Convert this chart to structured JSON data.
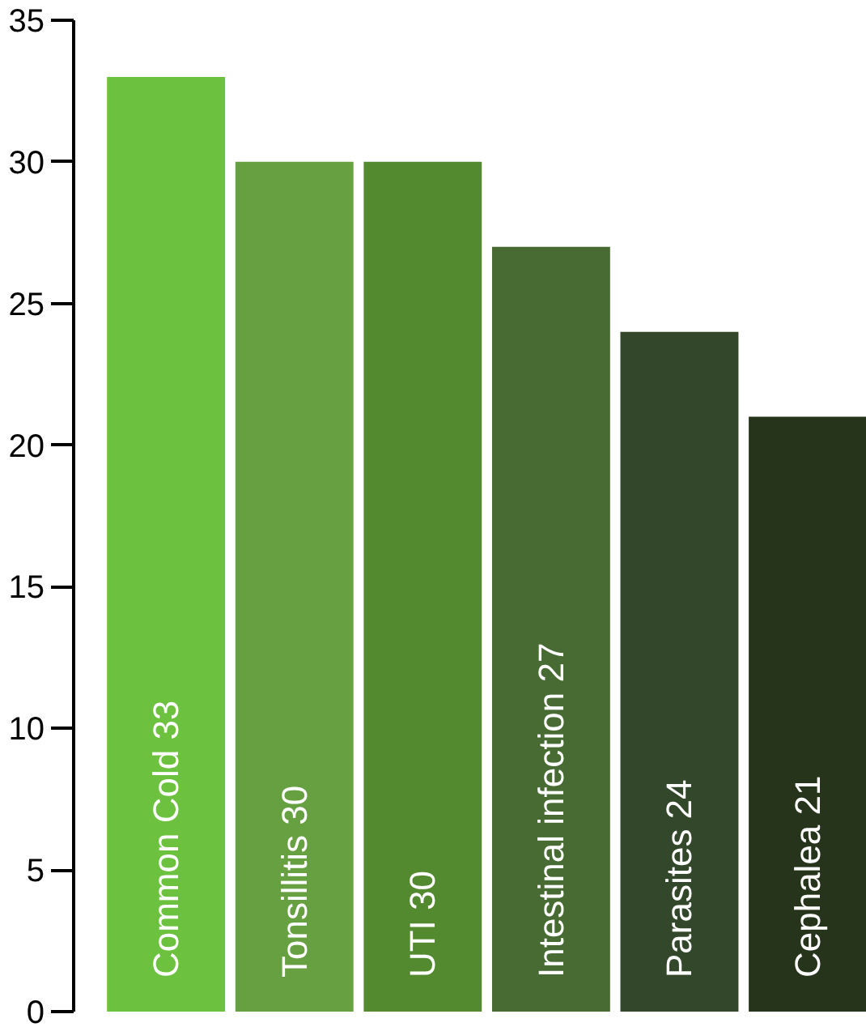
{
  "chart_data": {
    "type": "bar",
    "categories": [
      "Common Cold 33",
      "Tonsillitis 30",
      "UTI 30",
      "Intestinal infection 27",
      "Parasites 24",
      "Cephalea 21"
    ],
    "values": [
      33,
      30,
      30,
      27,
      24,
      21
    ],
    "colors": [
      "#6cc23e",
      "#67a040",
      "#53892f",
      "#486b33",
      "#33472a",
      "#26341b"
    ],
    "ylim": [
      0,
      35
    ],
    "yticks": [
      0,
      5,
      10,
      15,
      20,
      25,
      30,
      35
    ]
  }
}
